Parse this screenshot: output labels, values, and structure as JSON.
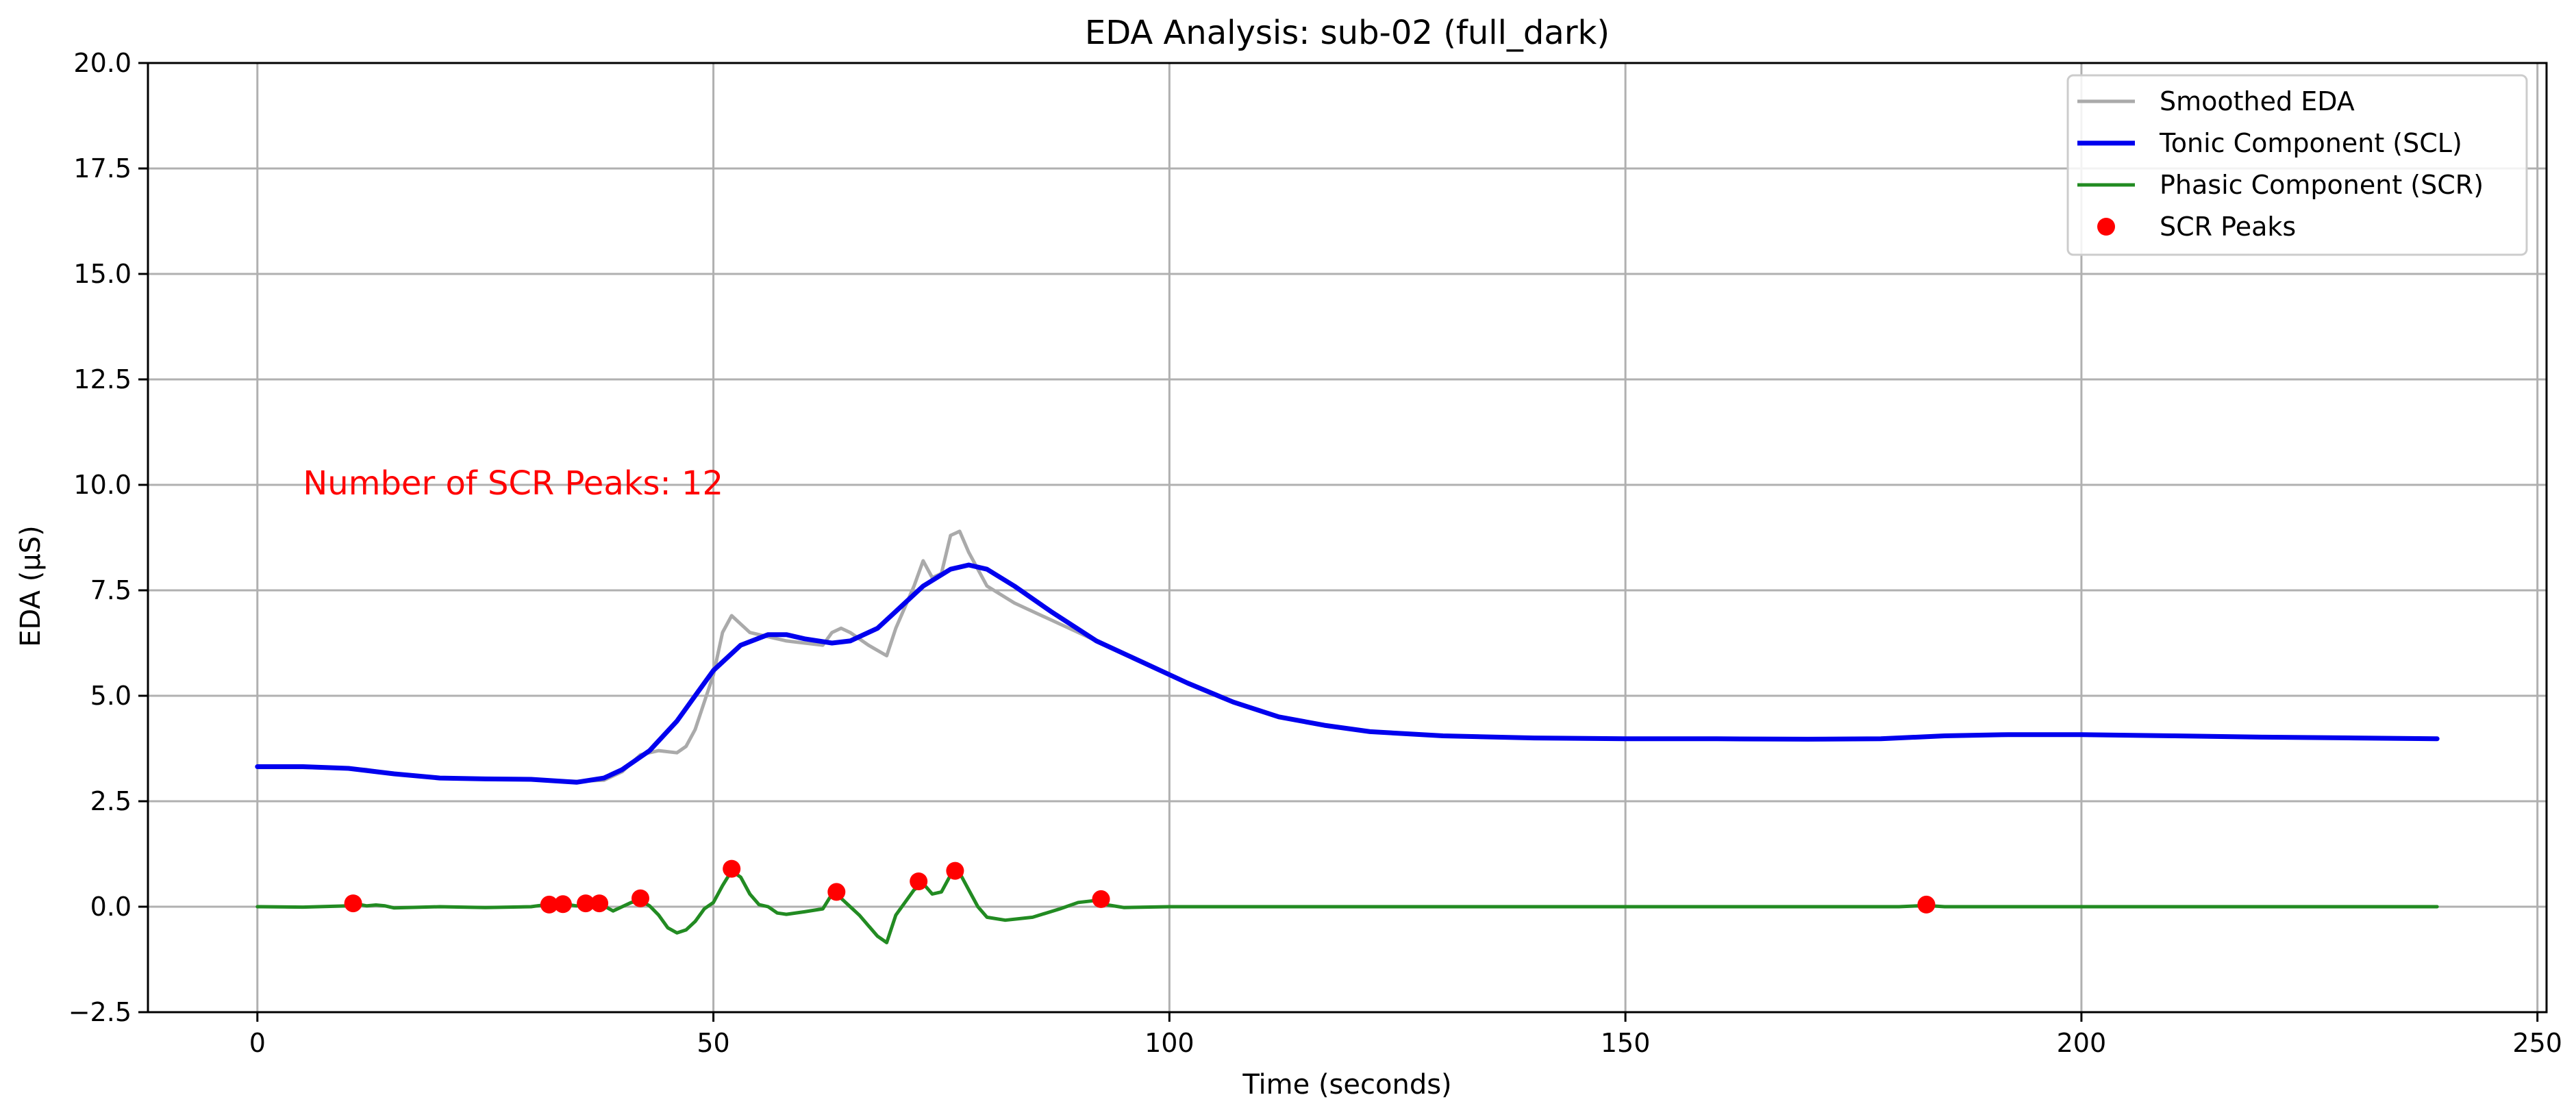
{
  "chart_data": {
    "type": "line",
    "title": "EDA Analysis: sub-02 (full_dark)",
    "xlabel": "Time (seconds)",
    "ylabel": "EDA (µS)",
    "xlim": [
      -12,
      251
    ],
    "ylim": [
      -2.5,
      20.0
    ],
    "xticks": [
      0,
      50,
      100,
      150,
      200,
      250
    ],
    "xtick_labels": [
      "0",
      "50",
      "100",
      "150",
      "200",
      "250"
    ],
    "yticks": [
      -2.5,
      0.0,
      2.5,
      5.0,
      7.5,
      10.0,
      12.5,
      15.0,
      17.5,
      20.0
    ],
    "ytick_labels": [
      "−2.5",
      "0.0",
      "2.5",
      "5.0",
      "7.5",
      "10.0",
      "12.5",
      "15.0",
      "17.5",
      "20.0"
    ],
    "grid": true,
    "legend_position": "top-right",
    "annotation": {
      "text": "Number of SCR Peaks: 12",
      "x": 5,
      "y": 10.0,
      "color": "#ff0000"
    },
    "series": [
      {
        "name": "Smoothed EDA",
        "kind": "line",
        "color": "#aaaaaa",
        "points": [
          [
            0,
            3.3
          ],
          [
            5,
            3.3
          ],
          [
            10,
            3.28
          ],
          [
            12,
            3.25
          ],
          [
            15,
            3.15
          ],
          [
            20,
            3.05
          ],
          [
            25,
            3.02
          ],
          [
            30,
            3.02
          ],
          [
            33,
            2.98
          ],
          [
            35,
            2.97
          ],
          [
            38,
            3.0
          ],
          [
            40,
            3.2
          ],
          [
            42,
            3.6
          ],
          [
            44,
            3.7
          ],
          [
            46,
            3.65
          ],
          [
            47,
            3.8
          ],
          [
            48,
            4.2
          ],
          [
            50,
            5.5
          ],
          [
            51,
            6.5
          ],
          [
            52,
            6.9
          ],
          [
            53,
            6.7
          ],
          [
            54,
            6.5
          ],
          [
            56,
            6.4
          ],
          [
            58,
            6.3
          ],
          [
            60,
            6.25
          ],
          [
            62,
            6.2
          ],
          [
            63,
            6.5
          ],
          [
            64,
            6.6
          ],
          [
            65,
            6.5
          ],
          [
            67,
            6.2
          ],
          [
            69,
            5.95
          ],
          [
            70,
            6.6
          ],
          [
            72,
            7.6
          ],
          [
            73,
            8.2
          ],
          [
            74,
            7.8
          ],
          [
            75,
            7.9
          ],
          [
            76,
            8.8
          ],
          [
            77,
            8.9
          ],
          [
            78,
            8.4
          ],
          [
            80,
            7.6
          ],
          [
            83,
            7.2
          ],
          [
            86,
            6.9
          ],
          [
            89,
            6.6
          ],
          [
            92,
            6.3
          ]
        ]
      },
      {
        "name": "Tonic Component (SCL)",
        "kind": "line",
        "color": "#0000ee",
        "points": [
          [
            0,
            3.32
          ],
          [
            5,
            3.32
          ],
          [
            10,
            3.28
          ],
          [
            15,
            3.15
          ],
          [
            20,
            3.05
          ],
          [
            25,
            3.03
          ],
          [
            30,
            3.02
          ],
          [
            35,
            2.95
          ],
          [
            38,
            3.05
          ],
          [
            40,
            3.25
          ],
          [
            43,
            3.7
          ],
          [
            46,
            4.4
          ],
          [
            50,
            5.6
          ],
          [
            53,
            6.2
          ],
          [
            56,
            6.45
          ],
          [
            58,
            6.45
          ],
          [
            60,
            6.35
          ],
          [
            63,
            6.25
          ],
          [
            65,
            6.3
          ],
          [
            68,
            6.6
          ],
          [
            70,
            7.0
          ],
          [
            73,
            7.6
          ],
          [
            76,
            8.0
          ],
          [
            78,
            8.1
          ],
          [
            80,
            8.0
          ],
          [
            83,
            7.6
          ],
          [
            87,
            7.0
          ],
          [
            92,
            6.3
          ],
          [
            97,
            5.8
          ],
          [
            102,
            5.3
          ],
          [
            107,
            4.85
          ],
          [
            112,
            4.5
          ],
          [
            117,
            4.3
          ],
          [
            122,
            4.15
          ],
          [
            130,
            4.05
          ],
          [
            140,
            4.0
          ],
          [
            150,
            3.98
          ],
          [
            160,
            3.98
          ],
          [
            170,
            3.97
          ],
          [
            178,
            3.98
          ],
          [
            185,
            4.05
          ],
          [
            192,
            4.08
          ],
          [
            200,
            4.08
          ],
          [
            210,
            4.05
          ],
          [
            220,
            4.02
          ],
          [
            230,
            4.0
          ],
          [
            239,
            3.98
          ]
        ]
      },
      {
        "name": "Phasic Component (SCR)",
        "kind": "line",
        "color": "#228b22",
        "points": [
          [
            0,
            0.0
          ],
          [
            5,
            -0.01
          ],
          [
            10,
            0.02
          ],
          [
            11,
            0.06
          ],
          [
            12,
            0.02
          ],
          [
            13,
            0.04
          ],
          [
            14,
            0.02
          ],
          [
            15,
            -0.03
          ],
          [
            20,
            0.0
          ],
          [
            25,
            -0.02
          ],
          [
            30,
            0.0
          ],
          [
            31,
            0.03
          ],
          [
            32,
            0.05
          ],
          [
            33,
            0.03
          ],
          [
            34,
            0.05
          ],
          [
            35,
            0.02
          ],
          [
            36,
            0.06
          ],
          [
            37,
            0.06
          ],
          [
            38,
            0.02
          ],
          [
            39,
            -0.1
          ],
          [
            40,
            0.0
          ],
          [
            41,
            0.1
          ],
          [
            42,
            0.15
          ],
          [
            43,
            0.02
          ],
          [
            44,
            -0.2
          ],
          [
            45,
            -0.5
          ],
          [
            46,
            -0.62
          ],
          [
            47,
            -0.55
          ],
          [
            48,
            -0.35
          ],
          [
            49,
            -0.05
          ],
          [
            50,
            0.1
          ],
          [
            51,
            0.5
          ],
          [
            52,
            0.85
          ],
          [
            53,
            0.7
          ],
          [
            54,
            0.3
          ],
          [
            55,
            0.05
          ],
          [
            56,
            0.0
          ],
          [
            57,
            -0.15
          ],
          [
            58,
            -0.18
          ],
          [
            60,
            -0.12
          ],
          [
            62,
            -0.05
          ],
          [
            63,
            0.3
          ],
          [
            64,
            0.2
          ],
          [
            65,
            0.0
          ],
          [
            66,
            -0.2
          ],
          [
            67,
            -0.45
          ],
          [
            68,
            -0.7
          ],
          [
            69,
            -0.85
          ],
          [
            70,
            -0.2
          ],
          [
            71,
            0.1
          ],
          [
            72,
            0.4
          ],
          [
            73,
            0.55
          ],
          [
            74,
            0.3
          ],
          [
            75,
            0.35
          ],
          [
            76,
            0.75
          ],
          [
            77,
            0.8
          ],
          [
            78,
            0.4
          ],
          [
            79,
            0.0
          ],
          [
            80,
            -0.25
          ],
          [
            82,
            -0.32
          ],
          [
            85,
            -0.25
          ],
          [
            88,
            -0.05
          ],
          [
            90,
            0.1
          ],
          [
            92,
            0.15
          ],
          [
            93,
            0.05
          ],
          [
            95,
            -0.02
          ],
          [
            100,
            0.0
          ],
          [
            120,
            0.0
          ],
          [
            140,
            0.0
          ],
          [
            160,
            0.0
          ],
          [
            180,
            0.0
          ],
          [
            183,
            0.03
          ],
          [
            185,
            0.0
          ],
          [
            200,
            0.0
          ],
          [
            220,
            0.0
          ],
          [
            239,
            0.0
          ]
        ]
      },
      {
        "name": "SCR Peaks",
        "kind": "scatter",
        "color": "#ff0000",
        "points": [
          [
            10.5,
            0.08
          ],
          [
            32,
            0.05
          ],
          [
            33.5,
            0.06
          ],
          [
            36,
            0.08
          ],
          [
            37.5,
            0.08
          ],
          [
            42,
            0.2
          ],
          [
            52,
            0.9
          ],
          [
            63.5,
            0.35
          ],
          [
            72.5,
            0.6
          ],
          [
            76.5,
            0.85
          ],
          [
            92.5,
            0.18
          ],
          [
            183,
            0.05
          ]
        ]
      }
    ]
  }
}
